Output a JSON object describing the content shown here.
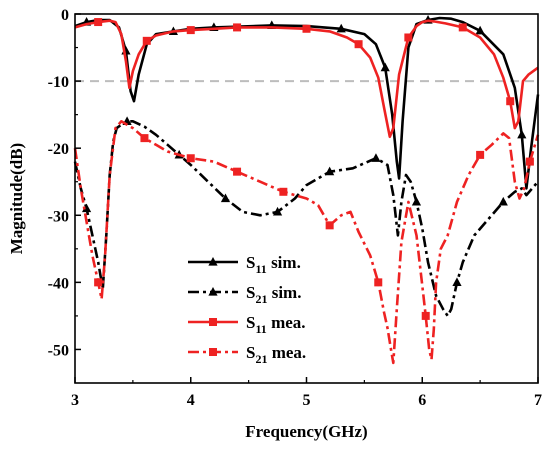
{
  "chart_data": {
    "type": "line",
    "xlabel": "Frequency(GHz)",
    "ylabel": "Magnitude(dB)",
    "xlim": [
      3,
      7
    ],
    "ylim": [
      -55,
      0
    ],
    "xticks": [
      "3",
      "4",
      "5",
      "6",
      "7"
    ],
    "yticks": [
      "0",
      "-10",
      "-20",
      "-30",
      "-40",
      "-50"
    ],
    "xtick_values": [
      3,
      4,
      5,
      6,
      7
    ],
    "ytick_values": [
      0,
      -10,
      -20,
      -30,
      -40,
      -50
    ],
    "reference_line": {
      "y": -10,
      "color": "#bdbdbd",
      "style": "dashed"
    },
    "legend_position": "lower-center",
    "series": [
      {
        "name": "S11 sim.",
        "label_main": "S",
        "label_sub": "11",
        "label_tail": " sim.",
        "color": "#000000",
        "style": "solid",
        "marker": "triangle",
        "x": [
          3.0,
          3.1,
          3.2,
          3.3,
          3.38,
          3.44,
          3.48,
          3.51,
          3.55,
          3.62,
          3.7,
          3.85,
          4.0,
          4.2,
          4.4,
          4.7,
          5.0,
          5.3,
          5.5,
          5.6,
          5.68,
          5.74,
          5.78,
          5.8,
          5.83,
          5.88,
          5.95,
          6.05,
          6.15,
          6.25,
          6.35,
          6.5,
          6.7,
          6.8,
          6.86,
          6.9,
          6.94,
          7.0
        ],
        "y": [
          -1.8,
          -1.2,
          -0.9,
          -0.9,
          -2.0,
          -5.5,
          -11.5,
          -13.0,
          -9.0,
          -4.5,
          -3.0,
          -2.6,
          -2.2,
          -2.0,
          -1.9,
          -1.7,
          -1.8,
          -2.2,
          -3.0,
          -4.5,
          -8.0,
          -15.0,
          -22.0,
          -24.5,
          -16.0,
          -5.0,
          -1.5,
          -0.9,
          -0.6,
          -0.7,
          -1.2,
          -2.5,
          -6.0,
          -11.0,
          -18.0,
          -26.0,
          -20.0,
          -12.0
        ]
      },
      {
        "name": "S21 sim.",
        "label_main": "S",
        "label_sub": "21",
        "label_tail": " sim.",
        "color": "#000000",
        "style": "dashdot",
        "marker": "triangle",
        "x": [
          3.0,
          3.05,
          3.1,
          3.15,
          3.2,
          3.24,
          3.27,
          3.3,
          3.33,
          3.36,
          3.4,
          3.45,
          3.5,
          3.6,
          3.7,
          3.8,
          3.9,
          4.0,
          4.15,
          4.3,
          4.45,
          4.6,
          4.75,
          4.9,
          5.0,
          5.2,
          5.4,
          5.6,
          5.7,
          5.75,
          5.79,
          5.82,
          5.86,
          5.9,
          5.95,
          6.0,
          6.05,
          6.12,
          6.18,
          6.22,
          6.25,
          6.3,
          6.35,
          6.45,
          6.55,
          6.7,
          6.8,
          6.86,
          6.9,
          6.95,
          7.0
        ],
        "y": [
          -22.0,
          -26.0,
          -29.0,
          -33.0,
          -37.0,
          -41.0,
          -33.0,
          -24.0,
          -19.0,
          -17.0,
          -16.5,
          -16.0,
          -16.0,
          -16.8,
          -18.0,
          -19.5,
          -21.0,
          -22.5,
          -25.0,
          -27.5,
          -29.5,
          -30.0,
          -29.5,
          -27.5,
          -25.5,
          -23.5,
          -23.0,
          -21.5,
          -22.5,
          -27.0,
          -33.0,
          -28.0,
          -24.0,
          -25.0,
          -28.0,
          -32.0,
          -37.0,
          -42.0,
          -44.0,
          -45.0,
          -44.0,
          -40.0,
          -37.0,
          -33.0,
          -31.0,
          -28.0,
          -26.5,
          -26.0,
          -27.0,
          -26.0,
          -25.0
        ]
      },
      {
        "name": "S11 mea.",
        "label_main": "S",
        "label_sub": "11",
        "label_tail": " mea.",
        "color": "#ee2222",
        "style": "solid",
        "marker": "square",
        "x": [
          3.0,
          3.1,
          3.2,
          3.3,
          3.35,
          3.4,
          3.44,
          3.47,
          3.5,
          3.55,
          3.62,
          3.7,
          3.85,
          4.0,
          4.2,
          4.4,
          4.7,
          5.0,
          5.2,
          5.35,
          5.45,
          5.55,
          5.62,
          5.67,
          5.72,
          5.75,
          5.8,
          5.88,
          5.95,
          6.0,
          6.05,
          6.1,
          6.2,
          6.35,
          6.5,
          6.62,
          6.7,
          6.76,
          6.8,
          6.83,
          6.87,
          6.92,
          7.0
        ],
        "y": [
          -2.0,
          -1.5,
          -1.2,
          -1.0,
          -1.2,
          -3.0,
          -7.0,
          -11.0,
          -8.5,
          -6.0,
          -4.0,
          -3.2,
          -2.6,
          -2.4,
          -2.2,
          -2.0,
          -2.0,
          -2.2,
          -2.6,
          -3.5,
          -4.5,
          -6.5,
          -9.5,
          -14.0,
          -18.3,
          -17.0,
          -9.0,
          -3.5,
          -1.8,
          -1.2,
          -1.0,
          -1.1,
          -1.4,
          -2.0,
          -3.5,
          -6.0,
          -9.5,
          -13.0,
          -17.0,
          -16.0,
          -10.0,
          -9.0,
          -8.0
        ]
      },
      {
        "name": "S21 mea.",
        "label_main": "S",
        "label_sub": "21",
        "label_tail": " mea.",
        "color": "#ee2222",
        "style": "dashdot",
        "marker": "square",
        "x": [
          3.0,
          3.05,
          3.1,
          3.15,
          3.2,
          3.23,
          3.26,
          3.3,
          3.35,
          3.4,
          3.45,
          3.5,
          3.6,
          3.7,
          3.8,
          3.9,
          4.0,
          4.2,
          4.4,
          4.6,
          4.8,
          4.9,
          5.0,
          5.1,
          5.2,
          5.3,
          5.38,
          5.45,
          5.55,
          5.62,
          5.67,
          5.7,
          5.73,
          5.75,
          5.78,
          5.82,
          5.88,
          5.95,
          6.0,
          6.03,
          6.06,
          6.08,
          6.1,
          6.12,
          6.16,
          6.22,
          6.3,
          6.4,
          6.5,
          6.6,
          6.7,
          6.75,
          6.8,
          6.84,
          6.88,
          6.93,
          7.0
        ],
        "y": [
          -20.0,
          -26.0,
          -31.0,
          -36.0,
          -40.0,
          -42.5,
          -36.0,
          -24.0,
          -17.0,
          -16.0,
          -16.5,
          -17.0,
          -18.5,
          -19.5,
          -20.5,
          -21.0,
          -21.5,
          -22.0,
          -23.5,
          -25.0,
          -26.5,
          -27.0,
          -27.5,
          -28.5,
          -31.5,
          -30.0,
          -29.5,
          -32.5,
          -36.0,
          -40.0,
          -44.5,
          -46.8,
          -50.0,
          -52.0,
          -44.0,
          -34.0,
          -28.0,
          -33.0,
          -40.5,
          -45.0,
          -50.0,
          -51.5,
          -47.0,
          -40.0,
          -35.0,
          -33.0,
          -28.0,
          -24.0,
          -21.0,
          -19.5,
          -17.8,
          -18.5,
          -25.0,
          -27.5,
          -26.0,
          -22.0,
          -18.0
        ]
      }
    ]
  }
}
